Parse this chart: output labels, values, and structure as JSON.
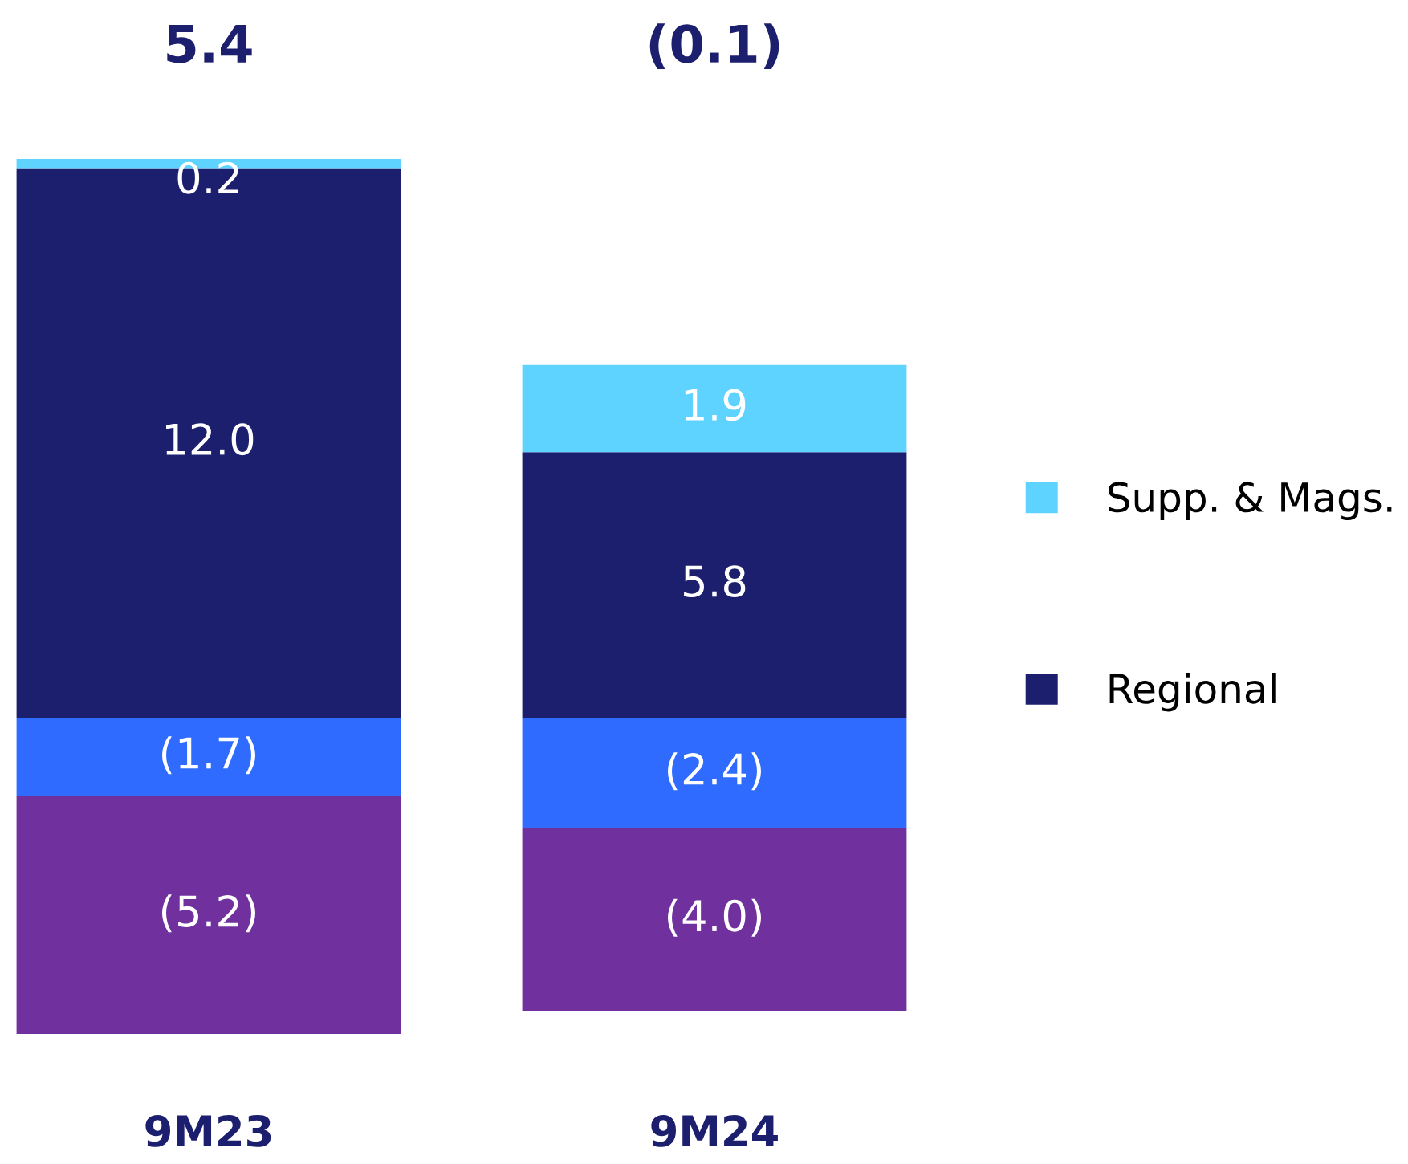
{
  "chart_data": {
    "type": "bar",
    "stacked": true,
    "categories": [
      "9M23",
      "9M24"
    ],
    "series": [
      {
        "name": "Regional",
        "color": "#1b1f6e",
        "values": [
          12.0,
          5.8
        ],
        "value_labels": [
          "12.0",
          "5.8"
        ]
      },
      {
        "color": "#2f6bff",
        "values": [
          -1.7,
          -2.4
        ],
        "value_labels": [
          "(1.7)",
          "(2.4)"
        ]
      },
      {
        "color": "#70319f",
        "values": [
          -5.2,
          -4.0
        ],
        "value_labels": [
          "(5.2)",
          "(4.0)"
        ]
      },
      {
        "name": "Supp. & Mags.",
        "color": "#5fd3ff",
        "values": [
          0.2,
          1.9
        ],
        "value_labels": [
          "0.2",
          "1.9"
        ]
      }
    ],
    "annotations": [
      "5.4",
      "(0.1)"
    ],
    "legend": "right",
    "tick_labels": "x"
  }
}
